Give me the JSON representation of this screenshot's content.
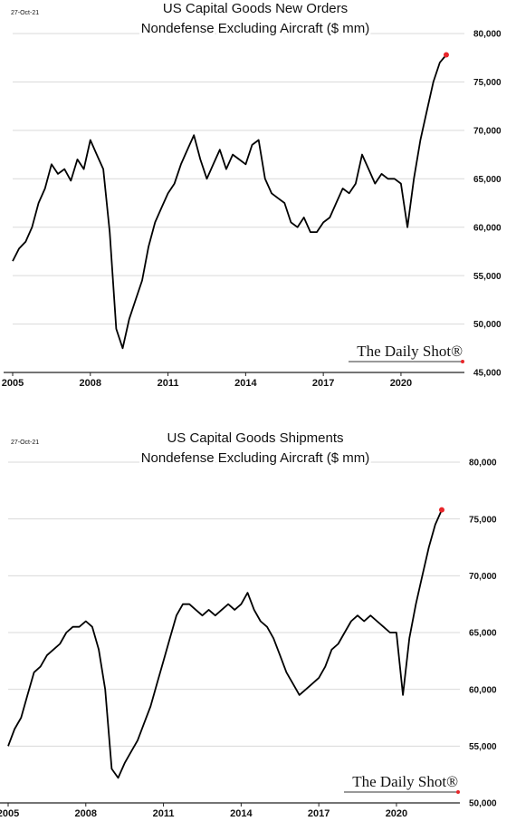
{
  "chart_data": [
    {
      "type": "line",
      "date": "27-Oct-21",
      "title": "US Capital Goods New Orders",
      "subtitle": "Nondefense Excluding Aircraft ($ mm)",
      "watermark": "The Daily Shot®",
      "x": [
        2005,
        2005.25,
        2005.5,
        2005.75,
        2006,
        2006.25,
        2006.5,
        2006.75,
        2007,
        2007.25,
        2007.5,
        2007.75,
        2008,
        2008.25,
        2008.5,
        2008.75,
        2009,
        2009.25,
        2009.5,
        2009.75,
        2010,
        2010.25,
        2010.5,
        2010.75,
        2011,
        2011.25,
        2011.5,
        2011.75,
        2012,
        2012.25,
        2012.5,
        2012.75,
        2013,
        2013.25,
        2013.5,
        2013.75,
        2014,
        2014.25,
        2014.5,
        2014.75,
        2015,
        2015.25,
        2015.5,
        2015.75,
        2016,
        2016.25,
        2016.5,
        2016.75,
        2017,
        2017.25,
        2017.5,
        2017.75,
        2018,
        2018.25,
        2018.5,
        2018.75,
        2019,
        2019.25,
        2019.5,
        2019.75,
        2020,
        2020.25,
        2020.5,
        2020.75,
        2021,
        2021.25,
        2021.5,
        2021.75
      ],
      "values": [
        56500,
        57800,
        58500,
        60000,
        62500,
        64000,
        66500,
        65500,
        66000,
        64800,
        67000,
        66000,
        69000,
        67500,
        66000,
        59500,
        49500,
        47500,
        50500,
        52500,
        54500,
        58000,
        60500,
        62000,
        63500,
        64500,
        66500,
        68000,
        69500,
        67000,
        65000,
        66500,
        68000,
        66000,
        67500,
        67000,
        66500,
        68500,
        69000,
        65000,
        63500,
        63000,
        62500,
        60500,
        60000,
        61000,
        59500,
        59500,
        60500,
        61000,
        62500,
        64000,
        63500,
        64500,
        67500,
        66000,
        64500,
        65500,
        65000,
        65000,
        64500,
        60000,
        65000,
        69000,
        72000,
        75000,
        77000,
        77800
      ],
      "color": "#000000",
      "marker_color": "#e8262a",
      "xlim": [
        2005,
        2022.45
      ],
      "xticks": [
        2005,
        2008,
        2011,
        2014,
        2017,
        2020
      ],
      "ylim": [
        45000,
        80000
      ],
      "yticks": [
        {
          "value": 45000,
          "label": "45,000"
        },
        {
          "value": 50000,
          "label": "50,000"
        },
        {
          "value": 55000,
          "label": "55,000"
        },
        {
          "value": 60000,
          "label": "60,000"
        },
        {
          "value": 65000,
          "label": "65,000"
        },
        {
          "value": 70000,
          "label": "70,000"
        },
        {
          "value": 75000,
          "label": "75,000"
        },
        {
          "value": 80000,
          "label": "80,000"
        }
      ],
      "grid": true,
      "y_axis_side": "right"
    },
    {
      "type": "line",
      "date": "27-Oct-21",
      "title": "US Capital Goods Shipments",
      "subtitle": "Nondefense Excluding Aircraft ($ mm)",
      "watermark": "The Daily Shot®",
      "x": [
        2005,
        2005.25,
        2005.5,
        2005.75,
        2006,
        2006.25,
        2006.5,
        2006.75,
        2007,
        2007.25,
        2007.5,
        2007.75,
        2008,
        2008.25,
        2008.5,
        2008.75,
        2009,
        2009.25,
        2009.5,
        2009.75,
        2010,
        2010.25,
        2010.5,
        2010.75,
        2011,
        2011.25,
        2011.5,
        2011.75,
        2012,
        2012.25,
        2012.5,
        2012.75,
        2013,
        2013.25,
        2013.5,
        2013.75,
        2014,
        2014.25,
        2014.5,
        2014.75,
        2015,
        2015.25,
        2015.5,
        2015.75,
        2016,
        2016.25,
        2016.5,
        2016.75,
        2017,
        2017.25,
        2017.5,
        2017.75,
        2018,
        2018.25,
        2018.5,
        2018.75,
        2019,
        2019.25,
        2019.5,
        2019.75,
        2020,
        2020.25,
        2020.5,
        2020.75,
        2021,
        2021.25,
        2021.5,
        2021.75
      ],
      "values": [
        55000,
        56500,
        57500,
        59500,
        61500,
        62000,
        63000,
        63500,
        64000,
        65000,
        65500,
        65500,
        66000,
        65500,
        63500,
        60000,
        53000,
        52200,
        53500,
        54500,
        55500,
        57000,
        58500,
        60500,
        62500,
        64500,
        66500,
        67500,
        67500,
        67000,
        66500,
        67000,
        66500,
        67000,
        67500,
        67000,
        67500,
        68500,
        67000,
        66000,
        65500,
        64500,
        63000,
        61500,
        60500,
        59500,
        60000,
        60500,
        61000,
        62000,
        63500,
        64000,
        65000,
        66000,
        66500,
        66000,
        66500,
        66000,
        65500,
        65000,
        65000,
        59500,
        64500,
        67500,
        70000,
        72500,
        74500,
        75800
      ],
      "color": "#000000",
      "marker_color": "#e8262a",
      "xlim": [
        2005,
        2022.45
      ],
      "xticks": [
        2005,
        2008,
        2011,
        2014,
        2017,
        2020
      ],
      "ylim": [
        50000,
        80000
      ],
      "yticks": [
        {
          "value": 50000,
          "label": "50,000"
        },
        {
          "value": 55000,
          "label": "55,000"
        },
        {
          "value": 60000,
          "label": "60,000"
        },
        {
          "value": 65000,
          "label": "65,000"
        },
        {
          "value": 70000,
          "label": "70,000"
        },
        {
          "value": 75000,
          "label": "75,000"
        },
        {
          "value": 80000,
          "label": "80,000"
        }
      ],
      "grid": true,
      "y_axis_side": "right"
    }
  ]
}
